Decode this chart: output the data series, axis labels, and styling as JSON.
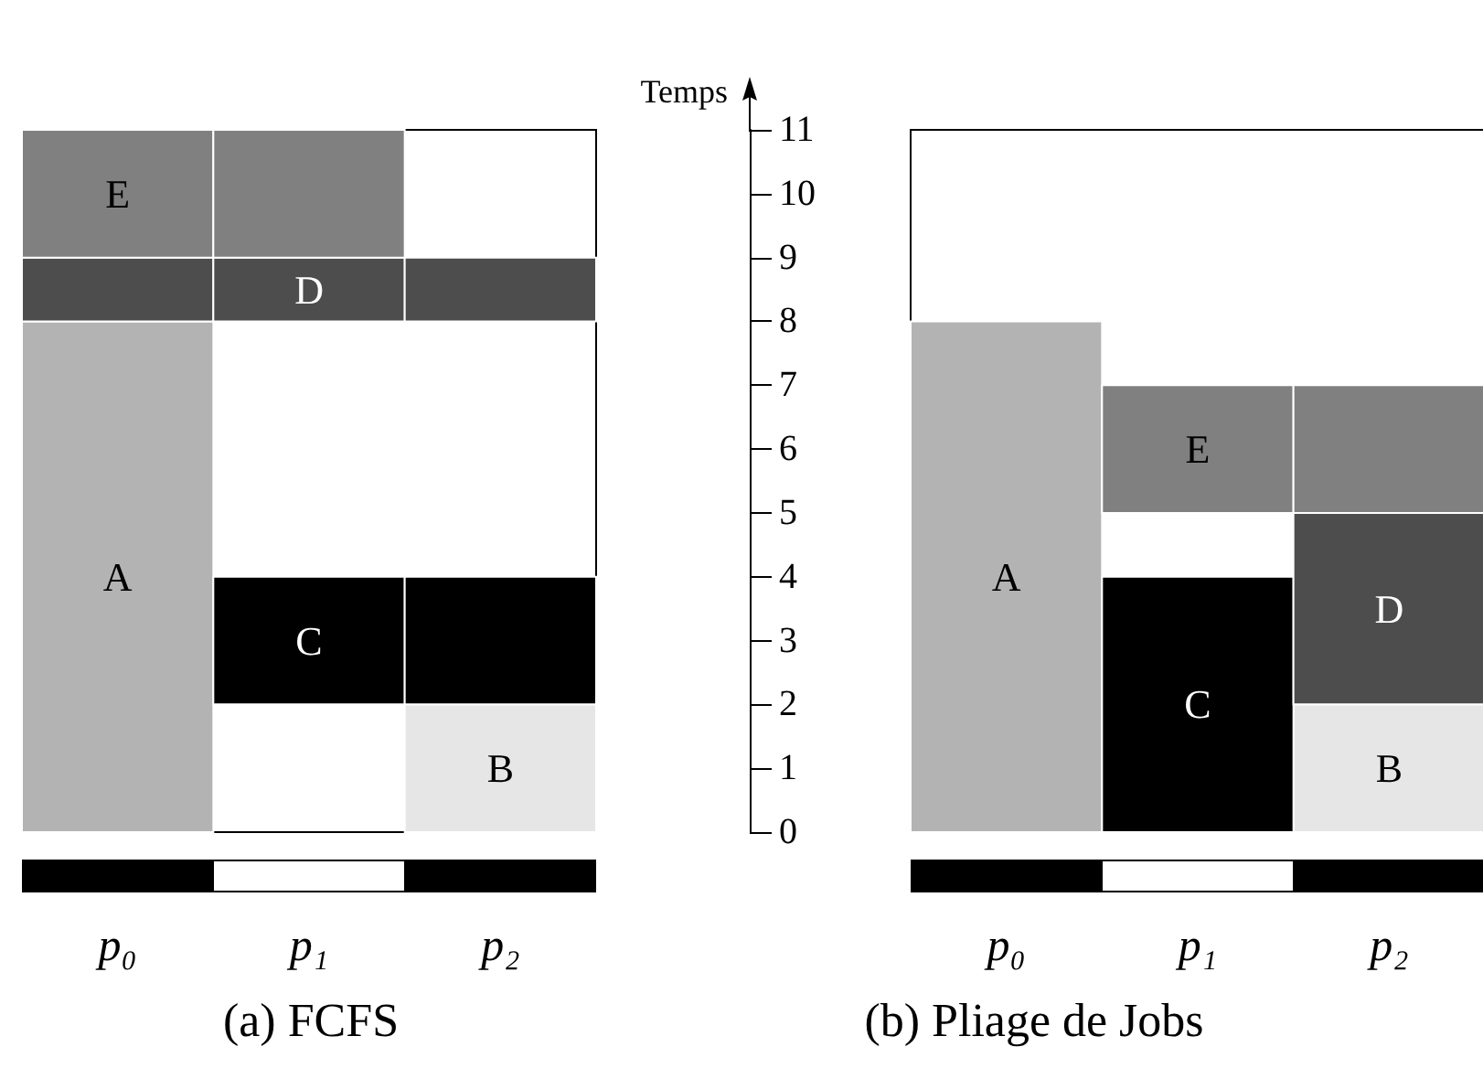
{
  "chart_data": [
    {
      "type": "bar",
      "title": "(a) FCFS",
      "categories": [
        "p₀",
        "p₁",
        "p₂"
      ],
      "ylim": [
        0,
        11
      ],
      "yticks": [
        0,
        1,
        2,
        3,
        4,
        5,
        6,
        7,
        8,
        9,
        10,
        11
      ],
      "tick_labels": "x",
      "series": [
        {
          "name": "A",
          "color": "#b3b3b3",
          "values": [
            8,
            null,
            null
          ],
          "base": [
            0,
            null,
            null
          ]
        },
        {
          "name": "B",
          "color": "#e6e6e6",
          "values": [
            null,
            null,
            2
          ],
          "base": [
            null,
            null,
            0
          ]
        },
        {
          "name": "C",
          "color": "#000000",
          "values": [
            null,
            2,
            2
          ],
          "base": [
            null,
            2,
            2
          ]
        },
        {
          "name": "D",
          "color": "#4d4d4d",
          "values": [
            1,
            1,
            1
          ],
          "base": [
            8,
            8,
            8
          ]
        },
        {
          "name": "E",
          "color": "#808080",
          "values": [
            2,
            2,
            null
          ],
          "base": [
            9,
            9,
            null
          ]
        }
      ]
    },
    {
      "type": "bar",
      "title": "(b) Pliage de Jobs",
      "ylabel": "Temps",
      "categories": [
        "p₀",
        "p₁",
        "p₂"
      ],
      "ylim": [
        0,
        11
      ],
      "yticks": [
        0,
        1,
        2,
        3,
        4,
        5,
        6,
        7,
        8,
        9,
        10,
        11
      ],
      "series": [
        {
          "name": "A",
          "color": "#b3b3b3",
          "values": [
            8,
            null,
            null
          ],
          "base": [
            0,
            null,
            null
          ]
        },
        {
          "name": "B",
          "color": "#e6e6e6",
          "values": [
            null,
            null,
            2
          ],
          "base": [
            null,
            null,
            0
          ]
        },
        {
          "name": "C",
          "color": "#000000",
          "values": [
            null,
            4,
            null
          ],
          "base": [
            null,
            0,
            null
          ]
        },
        {
          "name": "D",
          "color": "#4d4d4d",
          "values": [
            null,
            null,
            3
          ],
          "base": [
            null,
            null,
            2
          ]
        },
        {
          "name": "E",
          "color": "#808080",
          "values": [
            null,
            2,
            2
          ],
          "base": [
            null,
            5,
            5
          ]
        }
      ]
    }
  ]
}
